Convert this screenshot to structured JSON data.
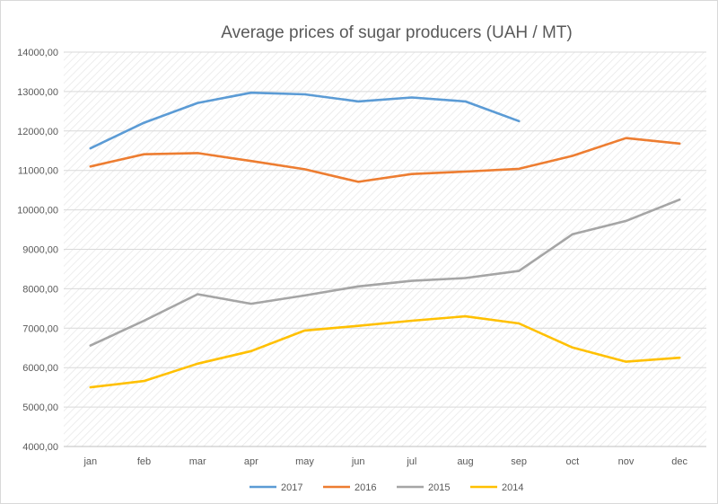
{
  "chart_data": {
    "type": "line",
    "title": "Average prices of sugar producers (UAH / MT)",
    "xlabel": "",
    "ylabel": "",
    "categories": [
      "jan",
      "feb",
      "mar",
      "apr",
      "may",
      "jun",
      "jul",
      "aug",
      "sep",
      "oct",
      "nov",
      "dec"
    ],
    "ylim": [
      4000,
      14000
    ],
    "yticks": [
      4000,
      5000,
      6000,
      7000,
      8000,
      9000,
      10000,
      11000,
      12000,
      13000,
      14000
    ],
    "ytick_labels": [
      "4000,00",
      "5000,00",
      "6000,00",
      "7000,00",
      "8000,00",
      "9000,00",
      "10000,00",
      "11000,00",
      "12000,00",
      "13000,00",
      "14000,00"
    ],
    "grid": true,
    "plot_background": "diagonal-hatch",
    "legend_position": "bottom",
    "series": [
      {
        "name": "2017",
        "color": "#5b9bd5",
        "values": [
          11560,
          12210,
          12710,
          12970,
          12930,
          12750,
          12850,
          12750,
          12250,
          null,
          null,
          null
        ]
      },
      {
        "name": "2016",
        "color": "#ed7d31",
        "values": [
          11100,
          11410,
          11440,
          11240,
          11030,
          10710,
          10910,
          10970,
          11040,
          11370,
          11820,
          11680
        ]
      },
      {
        "name": "2015",
        "color": "#a5a5a5",
        "values": [
          6560,
          7190,
          7860,
          7620,
          7830,
          8060,
          8200,
          8270,
          8450,
          9380,
          9720,
          10260
        ]
      },
      {
        "name": "2014",
        "color": "#ffc000",
        "values": [
          5500,
          5660,
          6100,
          6420,
          6940,
          7060,
          7190,
          7300,
          7120,
          6510,
          6150,
          6250
        ]
      }
    ]
  }
}
